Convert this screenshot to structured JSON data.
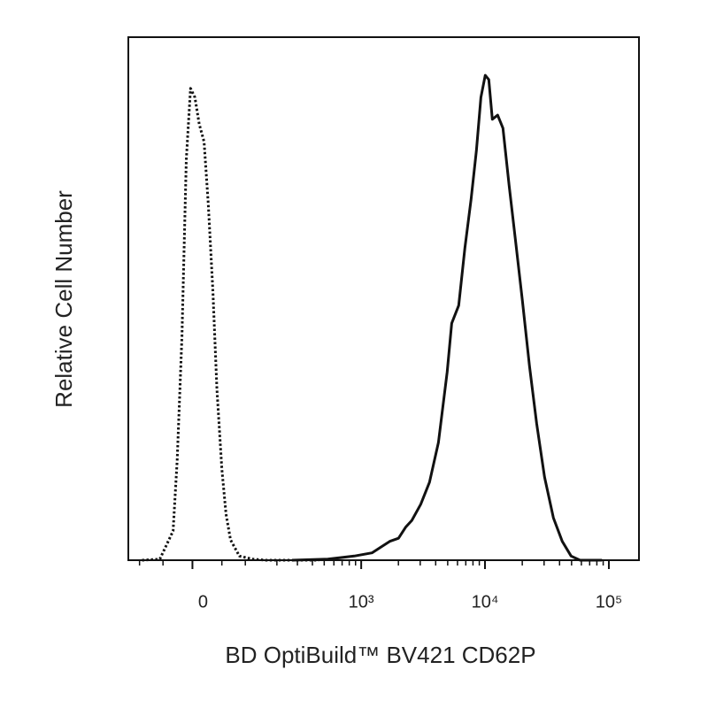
{
  "chart_data": {
    "type": "line",
    "x_label": "BD OptiBuild™ BV421 CD62P",
    "y_label": "Relative Cell Number",
    "x_scale": "biexponential",
    "xlim": [
      -130,
      175000
    ],
    "ylim": [
      0,
      100
    ],
    "xticks": [
      0,
      {
        "value": 1000,
        "label": "10³"
      },
      {
        "value": 10000,
        "label": "10⁴"
      },
      {
        "value": 100000,
        "label": "10⁵"
      }
    ],
    "xminorticks": [
      -100,
      -50,
      50,
      100,
      200,
      300,
      400,
      500,
      600,
      700,
      800,
      900,
      2000,
      3000,
      4000,
      5000,
      6000,
      7000,
      8000,
      9000,
      20000,
      30000,
      40000,
      50000,
      60000,
      70000,
      80000,
      90000
    ],
    "series": [
      {
        "color": "#111111",
        "style": "dotted",
        "x": [
          -94,
          -56,
          -32,
          -25,
          -17,
          -10,
          -3,
          4,
          11,
          19,
          26,
          34,
          41,
          50,
          58,
          67,
          86,
          119,
          159,
          272,
          452
        ],
        "values": [
          0,
          0.2,
          5.6,
          19.1,
          42.8,
          76.6,
          90.2,
          88.5,
          83.4,
          80.0,
          68.2,
          51.3,
          32.7,
          17.4,
          8.8,
          3.9,
          0.8,
          0.2,
          0,
          0,
          0
        ]
      },
      {
        "color": "#111111",
        "style": "solid",
        "x": [
          272,
          535,
          879,
          1223,
          1442,
          1701,
          2005,
          2286,
          2565,
          3027,
          3565,
          4207,
          4955,
          5383,
          6138,
          6887,
          7727,
          8531,
          9268,
          10046,
          10740,
          11455,
          12650,
          13960,
          15670,
          17580,
          20040,
          22860,
          26120,
          30270,
          35650,
          42070,
          49550,
          58480,
          88100
        ],
        "values": [
          0,
          0.2,
          0.8,
          1.4,
          2.5,
          3.6,
          4.2,
          6.3,
          7.6,
          10.7,
          14.9,
          22.5,
          36.0,
          45.3,
          48.7,
          59.7,
          69.0,
          78.3,
          88.5,
          92.7,
          91.9,
          84.3,
          85.1,
          82.6,
          71.6,
          61.4,
          49.6,
          37.1,
          26.1,
          15.9,
          8.1,
          3.6,
          0.8,
          0,
          0
        ]
      }
    ]
  }
}
